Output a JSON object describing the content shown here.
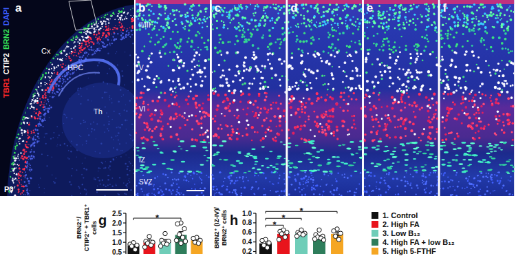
{
  "panels": [
    {
      "letter": "a",
      "channels": [
        {
          "name": "TBR1",
          "color": "#ff2a2a"
        },
        {
          "name": "CTIP2",
          "color": "#ffffff"
        },
        {
          "name": "BRN2",
          "color": "#35e05a"
        },
        {
          "name": "DAPI",
          "color": "#3a5cff"
        }
      ],
      "regions": [
        "Cx",
        "HPC",
        "Th"
      ],
      "age": "P0"
    },
    {
      "letter": "b",
      "layers": [
        "II/III",
        "V",
        "VI",
        "IZ",
        "SVZ"
      ]
    },
    {
      "letter": "c"
    },
    {
      "letter": "d"
    },
    {
      "letter": "e"
    },
    {
      "letter": "f"
    }
  ],
  "chart_data": [
    {
      "type": "bar",
      "title": "g",
      "y_label": [
        "BRN2⁺/",
        "CTIP2⁺ + TBR1⁺",
        "cells"
      ],
      "categories": [
        "1. Control",
        "2. High FA",
        "3. Low B₁₂",
        "4. High FA + low B₁₂",
        "5. High 5-FTHF"
      ],
      "values": [
        0.84,
        1.0,
        1.02,
        1.38,
        1.1
      ],
      "errors": [
        0.07,
        0.12,
        0.12,
        0.17,
        0.1
      ],
      "points": [
        [
          0.98,
          0.9,
          0.85,
          0.8,
          0.62
        ],
        [
          1.3,
          1.05,
          1.0,
          0.95,
          0.85,
          0.75
        ],
        [
          1.45,
          1.1,
          1.05,
          0.95,
          0.9,
          0.8
        ],
        [
          2.0,
          1.95,
          1.7,
          1.4,
          1.25,
          1.1,
          1.05,
          0.95
        ],
        [
          1.25,
          1.2,
          1.1,
          1.0,
          0.95
        ]
      ],
      "colors": [
        "#111111",
        "#e8141c",
        "#6fcdb8",
        "#2e7d5b",
        "#f5a623"
      ],
      "ylim": [
        0.4,
        2.5
      ],
      "yticks": [
        0.5,
        {
          "value": 1,
          "label": "1.0"
        },
        1.5,
        {
          "value": 2,
          "label": "2.0"
        },
        2.5
      ],
      "tick_labels": "y",
      "annotations": [
        {
          "text": "*",
          "from": 0,
          "to": 3
        }
      ]
    },
    {
      "type": "bar",
      "title": "h",
      "y_label": [
        "BRN2⁺ (IZ-IV)/",
        "BRN2⁺ cells"
      ],
      "categories": [
        "1. Control",
        "2. High FA",
        "3. Low B₁₂",
        "4. High FA + low B₁₂",
        "5. High 5-FTHF"
      ],
      "values": [
        0.37,
        0.57,
        0.58,
        0.5,
        0.57
      ],
      "errors": [
        0.05,
        0.04,
        0.03,
        0.03,
        0.04
      ],
      "points": [
        [
          0.45,
          0.43,
          0.38,
          0.33,
          0.28
        ],
        [
          0.65,
          0.62,
          0.6,
          0.57,
          0.5,
          0.45
        ],
        [
          0.65,
          0.6,
          0.58,
          0.57,
          0.55,
          0.52
        ],
        [
          0.65,
          0.55,
          0.52,
          0.5,
          0.48,
          0.46,
          0.44
        ],
        [
          0.67,
          0.63,
          0.58,
          0.52,
          0.45
        ]
      ],
      "colors": [
        "#111111",
        "#e8141c",
        "#6fcdb8",
        "#2e7d5b",
        "#f5a623"
      ],
      "ylim": [
        0.15,
        1.0
      ],
      "yticks": [
        0.2,
        0.4,
        0.6,
        0.8,
        {
          "value": 1,
          "label": "1.0"
        }
      ],
      "tick_labels": "y",
      "legend": "right",
      "annotations": [
        {
          "text": "*",
          "from": 0,
          "to": 1
        },
        {
          "text": "*",
          "from": 0,
          "to": 2
        },
        {
          "text": "*",
          "from": 0,
          "to": 4
        }
      ]
    }
  ]
}
